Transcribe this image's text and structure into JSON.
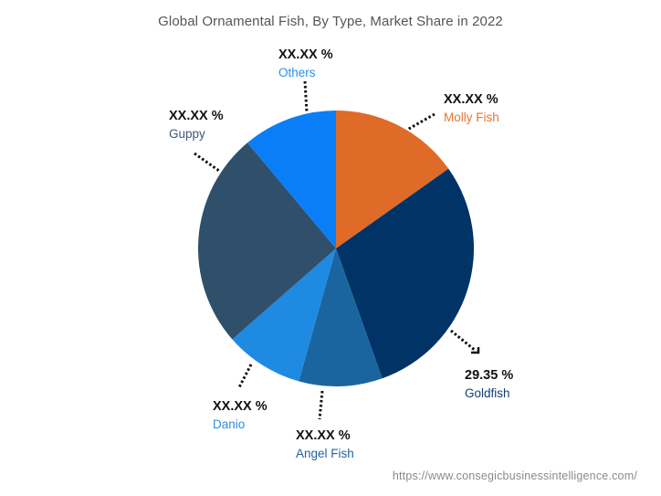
{
  "chart_data": {
    "type": "pie",
    "title": "Global  Ornamental Fish, By Type, Market Share in 2022",
    "start_angle_deg": 0,
    "direction": "clockwise",
    "slices": [
      {
        "label": "Molly Fish",
        "display_value": "XX.XX %",
        "value": 15.2,
        "color": "#E06A28"
      },
      {
        "label": "Goldfish",
        "display_value": "29.35 %",
        "value": 29.35,
        "color": "#003366"
      },
      {
        "label": "Angel Fish",
        "display_value": "XX.XX %",
        "value": 9.8,
        "color": "#1A65A0"
      },
      {
        "label": "Danio",
        "display_value": "XX.XX %",
        "value": 9.2,
        "color": "#1E8AE2"
      },
      {
        "label": "Guppy",
        "display_value": "XX.XX %",
        "value": 25.35,
        "color": "#2F4F6B"
      },
      {
        "label": "Others",
        "display_value": "XX.XX %",
        "value": 11.1,
        "color": "#0A7EF7"
      }
    ],
    "legend": "none (callout labels)"
  },
  "labels": {
    "others": {
      "value": "XX.XX %",
      "name": "Others",
      "color": "#2E8CF0"
    },
    "molly": {
      "value": "XX.XX %",
      "name": "Molly Fish",
      "color": "#E8742E"
    },
    "guppy": {
      "value": "XX.XX %",
      "name": "Guppy",
      "color": "#3A5A78"
    },
    "goldfish": {
      "value": "29.35 %",
      "name": "Goldfish",
      "color": "#0F3E78"
    },
    "danio": {
      "value": "XX.XX %",
      "name": "Danio",
      "color": "#2E8CE6"
    },
    "angel": {
      "value": "XX.XX %",
      "name": "Angel Fish",
      "color": "#1F64A0"
    }
  },
  "source": "https://www.consegicbusinessintelligence.com/"
}
